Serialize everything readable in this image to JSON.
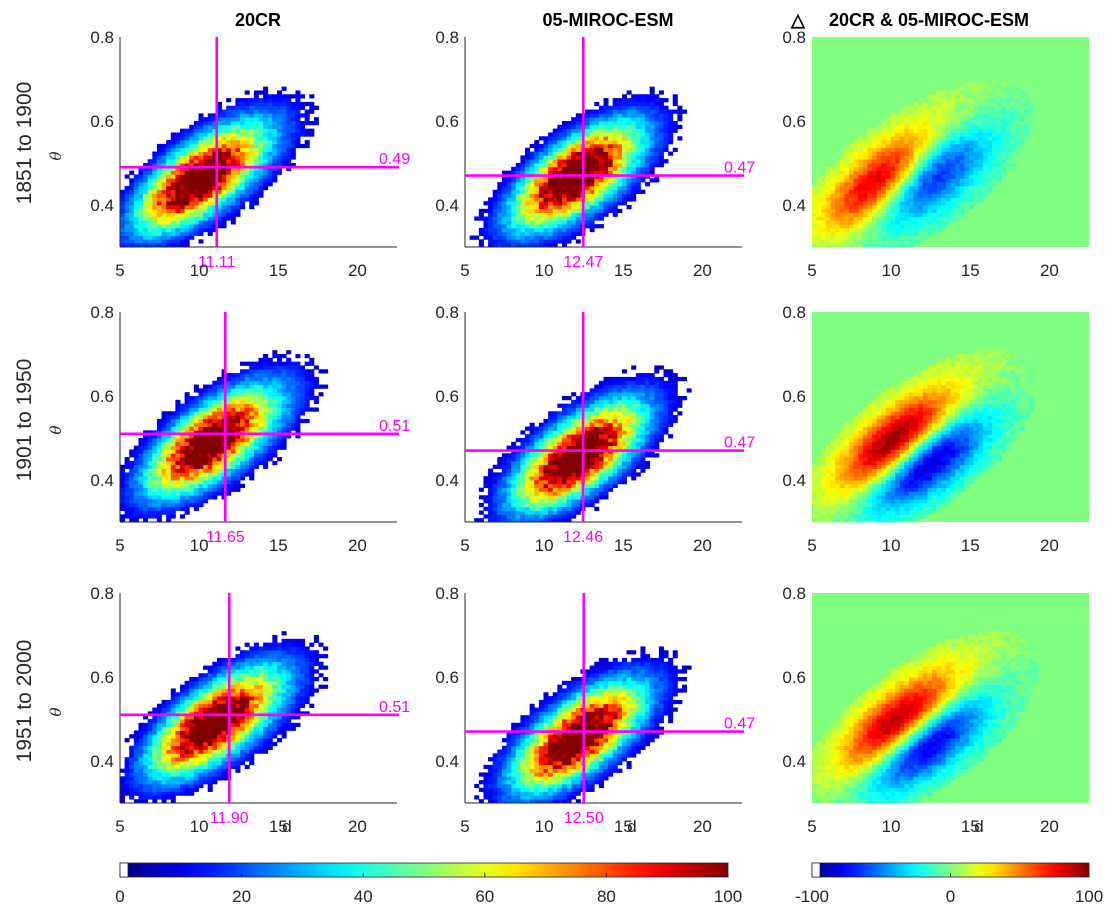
{
  "chart_data": {
    "type": "heatmap",
    "columns": [
      "20CR",
      "05-MIROC-ESM",
      "20CR & 05-MIROC-ESM"
    ],
    "delta_symbol": "△",
    "rows": [
      "1851 to 1900",
      "1901 to 1950",
      "1951 to 2000"
    ],
    "ylabel": "θ",
    "xlabel": "d",
    "xlim": [
      5,
      22.5
    ],
    "ylim": [
      0.3,
      0.8
    ],
    "xticks": [
      "5",
      "10",
      "15",
      "20"
    ],
    "yticks": [
      "0.4",
      "0.6",
      "0.8"
    ],
    "panels": [
      {
        "row": 0,
        "col": 0,
        "mean_d": 11.11,
        "mean_d_label": "11.11",
        "mean_theta": 0.49,
        "mean_theta_label": "0.49",
        "peak_d": 9.6,
        "peak_theta": 0.45
      },
      {
        "row": 0,
        "col": 1,
        "mean_d": 12.47,
        "mean_d_label": "12.47",
        "mean_theta": 0.47,
        "mean_theta_label": "0.47",
        "peak_d": 11.8,
        "peak_theta": 0.47
      },
      {
        "row": 1,
        "col": 0,
        "mean_d": 11.65,
        "mean_d_label": "11.65",
        "mean_theta": 0.51,
        "mean_theta_label": "0.51",
        "peak_d": 10.3,
        "peak_theta": 0.48
      },
      {
        "row": 1,
        "col": 1,
        "mean_d": 12.46,
        "mean_d_label": "12.46",
        "mean_theta": 0.47,
        "mean_theta_label": "0.47",
        "peak_d": 12.0,
        "peak_theta": 0.45
      },
      {
        "row": 2,
        "col": 0,
        "mean_d": 11.9,
        "mean_d_label": "11.90",
        "mean_theta": 0.51,
        "mean_theta_label": "0.51",
        "peak_d": 10.5,
        "peak_theta": 0.48
      },
      {
        "row": 2,
        "col": 1,
        "mean_d": 12.5,
        "mean_d_label": "12.50",
        "mean_theta": 0.47,
        "mean_theta_label": "0.47",
        "peak_d": 12.0,
        "peak_theta": 0.45
      }
    ],
    "colorbars": [
      {
        "ticks": [
          "0",
          "20",
          "40",
          "60",
          "80",
          "100"
        ],
        "range": [
          0,
          100
        ]
      },
      {
        "ticks": [
          "-100",
          "0",
          "100"
        ],
        "range": [
          -100,
          100
        ]
      }
    ],
    "colormap": "jet",
    "highlight_color": "#ff00ff",
    "diff_background": "#80ff80"
  }
}
